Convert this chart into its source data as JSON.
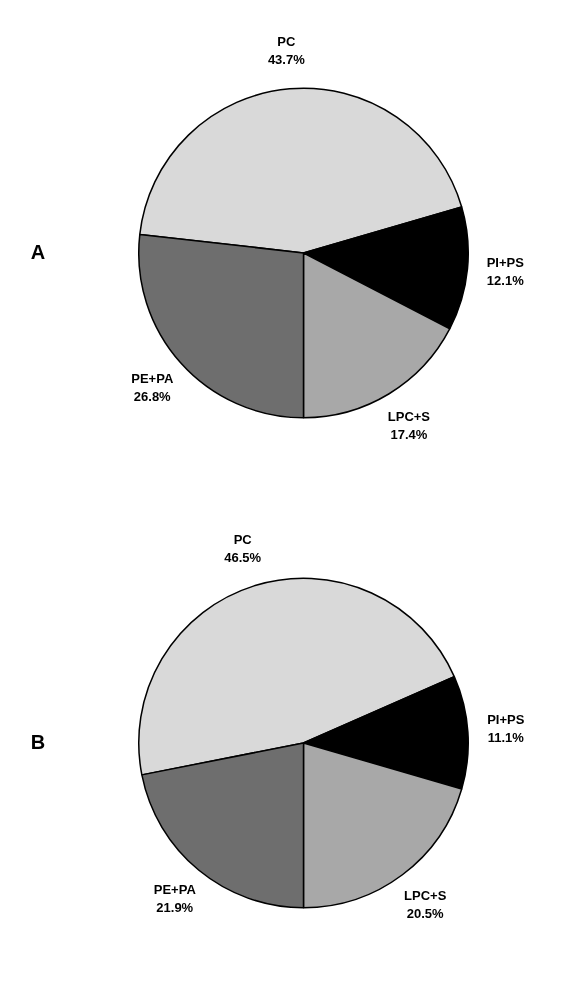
{
  "chart_data": [
    {
      "type": "pie",
      "title": "A",
      "categories": [
        "PC",
        "PI+PS",
        "LPC+S",
        "PE+PA"
      ],
      "values": [
        43.7,
        12.1,
        17.4,
        26.8
      ],
      "value_labels": [
        "43.7%",
        "12.1%",
        "17.4%",
        "26.8%"
      ],
      "colors": [
        "#d9d9d9",
        "#000000",
        "#a8a8a8",
        "#6e6e6e"
      ],
      "legend": false
    },
    {
      "type": "pie",
      "title": "B",
      "categories": [
        "PC",
        "PI+PS",
        "LPC+S",
        "PE+PA"
      ],
      "values": [
        46.5,
        11.1,
        20.5,
        21.9
      ],
      "value_labels": [
        "46.5%",
        "11.1%",
        "20.5%",
        "21.9%"
      ],
      "colors": [
        "#d9d9d9",
        "#000000",
        "#a8a8a8",
        "#6e6e6e"
      ],
      "legend": false
    }
  ]
}
